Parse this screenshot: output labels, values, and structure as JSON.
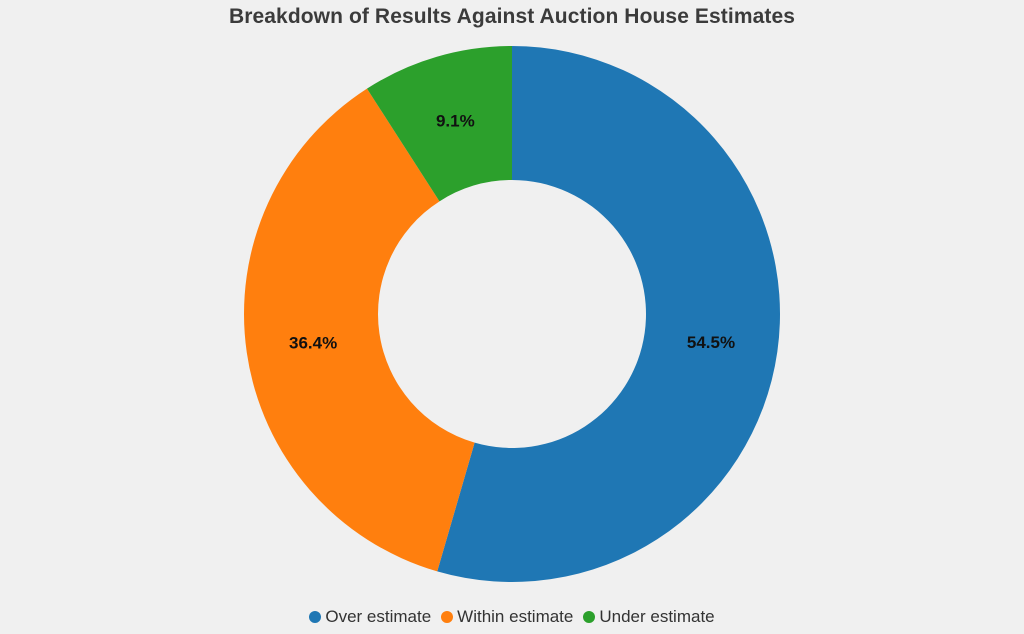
{
  "chart_data": {
    "type": "pie",
    "variant": "donut",
    "title": "Breakdown of Results Against Auction House Estimates",
    "categories": [
      "Over estimate",
      "Within estimate",
      "Under estimate"
    ],
    "values": [
      54.5,
      36.4,
      9.1
    ],
    "labels": [
      "54.5%",
      "36.4%",
      "9.1%"
    ],
    "colors": [
      "#1f77b4",
      "#ff7f0e",
      "#2ca02c"
    ],
    "legend_position": "bottom",
    "start_angle": "top, clockwise"
  }
}
